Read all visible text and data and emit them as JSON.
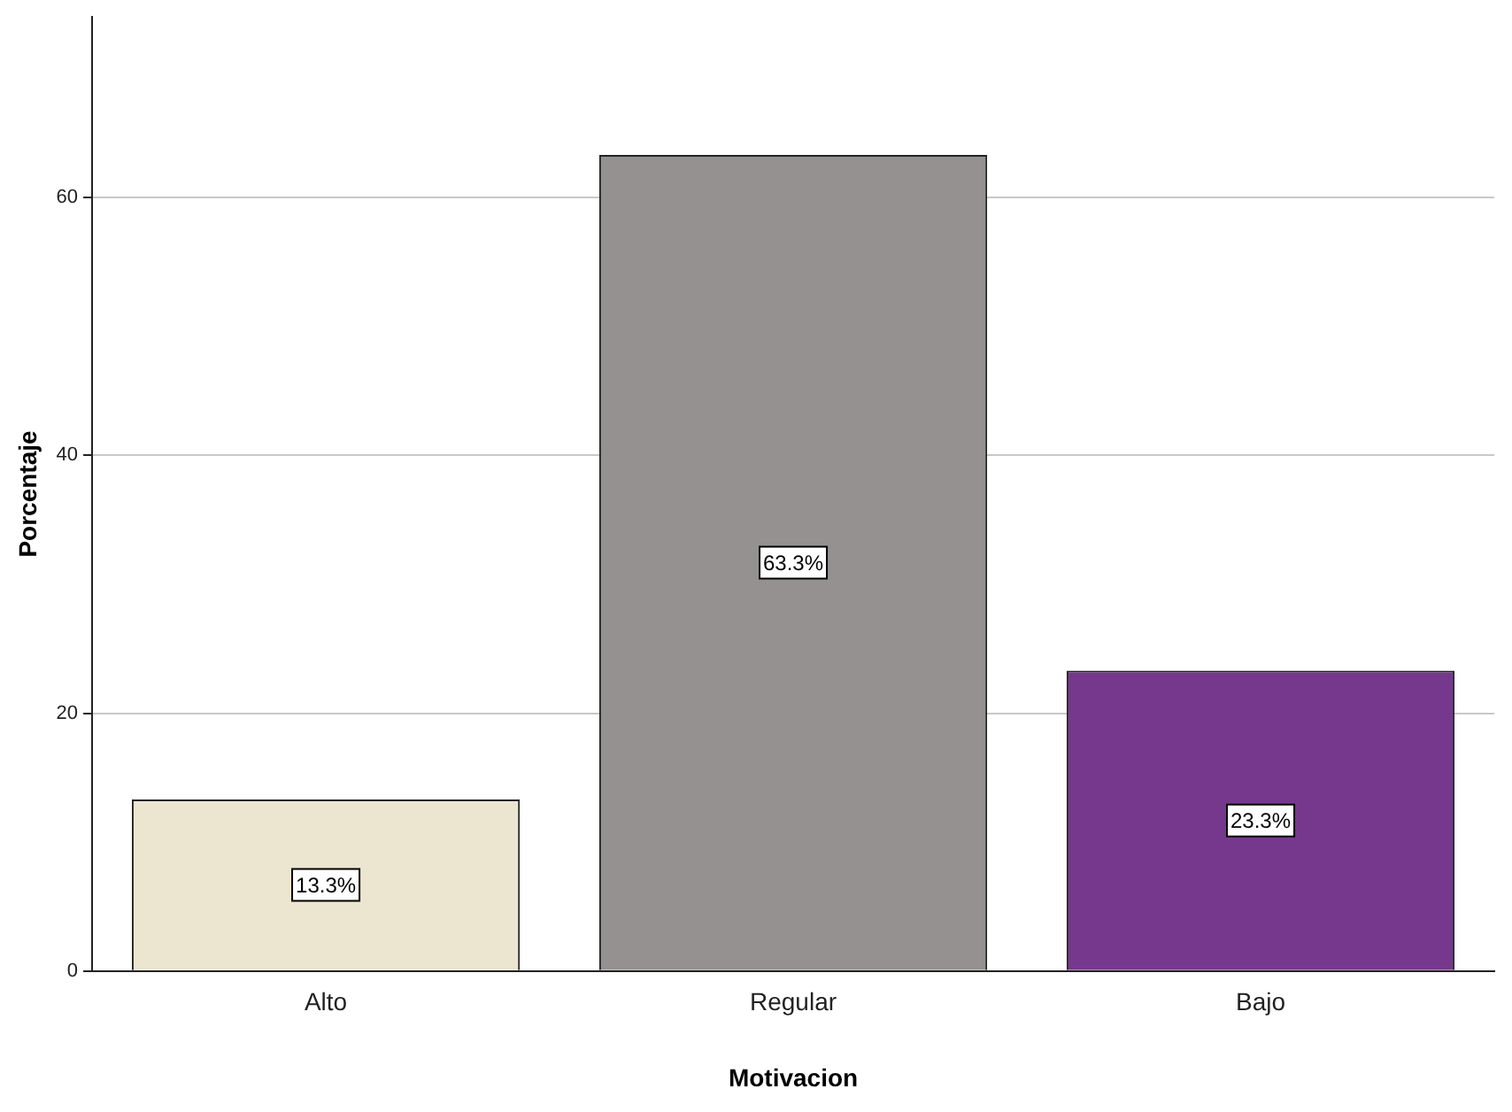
{
  "chart_data": {
    "type": "bar",
    "xlabel": "Motivacion",
    "ylabel": "Porcentaje",
    "categories": [
      "Alto",
      "Regular",
      "Bajo"
    ],
    "values": [
      13.3,
      63.3,
      23.3
    ],
    "colors": [
      "#ece5d0",
      "#959191",
      "#76388c"
    ],
    "value_labels": [
      "13.3%",
      "63.3%",
      "23.3%"
    ],
    "ylim": [
      0,
      74
    ],
    "yticks": [
      0,
      20,
      40,
      60
    ],
    "grid": "y",
    "legend": false
  }
}
